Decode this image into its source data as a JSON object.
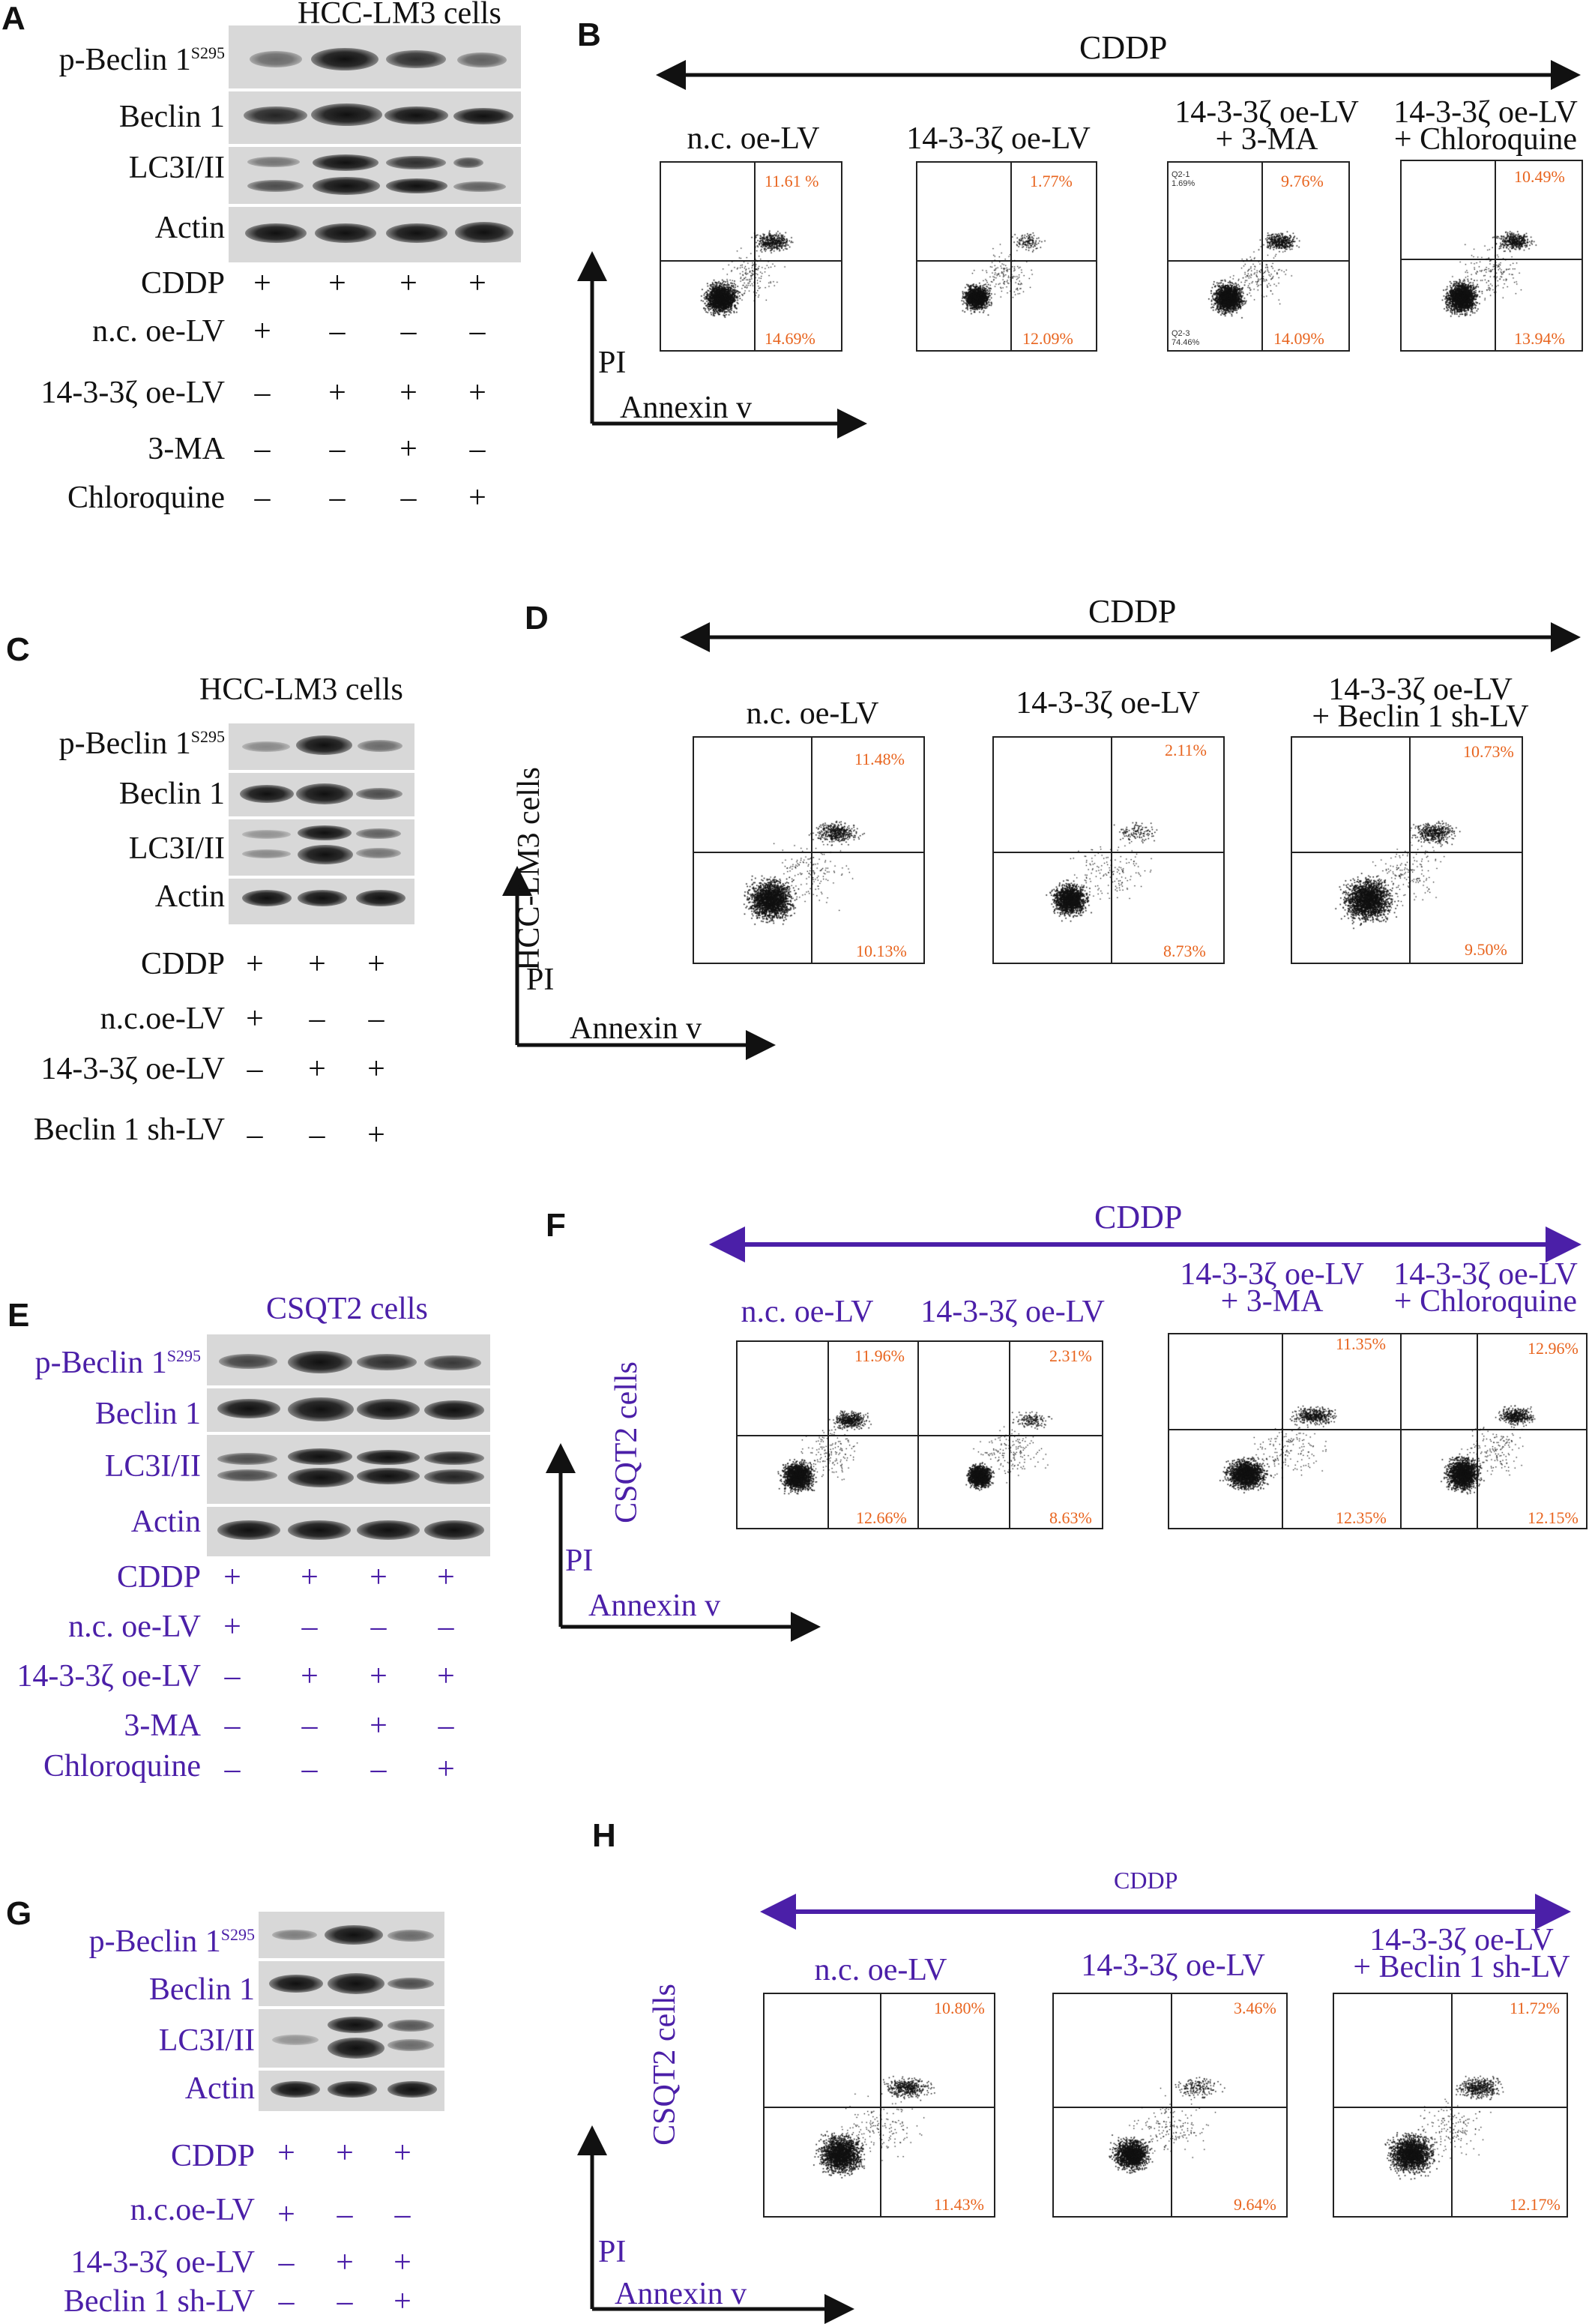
{
  "colors": {
    "purple": "#4b1fa8",
    "orange": "#e8641e",
    "black": "#111111"
  },
  "panels": {
    "A": {
      "letter": "A",
      "title": "HCC-LM3 cells",
      "blot_labels": [
        "p-Beclin 1",
        "Beclin 1",
        "LC3I/II",
        "Actin"
      ],
      "sup": "S295",
      "conditions": [
        {
          "label": "CDDP",
          "signs": [
            "+",
            "+",
            "+",
            "+"
          ]
        },
        {
          "label": "n.c. oe-LV",
          "signs": [
            "+",
            "–",
            "–",
            "–"
          ]
        },
        {
          "label": "14-3-3ζ oe-LV",
          "signs": [
            "–",
            "+",
            "+",
            "+"
          ]
        },
        {
          "label": "3-MA",
          "signs": [
            "–",
            "–",
            "+",
            "–"
          ]
        },
        {
          "label": "Chloroquine",
          "signs": [
            "–",
            "–",
            "–",
            "+"
          ]
        }
      ]
    },
    "B": {
      "letter": "B",
      "treatment": "CDDP",
      "y_axis": "PI",
      "x_axis": "Annexin v",
      "plots": [
        {
          "title": [
            "n.c. oe-LV"
          ],
          "ur": "11.61 %",
          "lr": "14.69%"
        },
        {
          "title": [
            "14-3-3ζ oe-LV"
          ],
          "ur": "1.77%",
          "lr": "12.09%"
        },
        {
          "title": [
            "14-3-3ζ oe-LV",
            "+ 3-MA"
          ],
          "ur": "9.76%",
          "lr": "14.09%",
          "ul_gate": "Q2-1",
          "ul_pct": "1.69%",
          "ll_gate": "Q2-3",
          "ll_pct": "74.46%"
        },
        {
          "title": [
            "14-3-3ζ oe-LV",
            "+ Chloroquine"
          ],
          "ur": "10.49%",
          "lr": "13.94%"
        }
      ]
    },
    "C": {
      "letter": "C",
      "title": "HCC-LM3 cells",
      "blot_labels": [
        "p-Beclin 1",
        "Beclin 1",
        "LC3I/II",
        "Actin"
      ],
      "sup": "S295",
      "conditions": [
        {
          "label": "CDDP",
          "signs": [
            "+",
            "+",
            "+"
          ]
        },
        {
          "label": "n.c.oe-LV",
          "signs": [
            "+",
            "–",
            "–"
          ]
        },
        {
          "label": "14-3-3ζ oe-LV",
          "signs": [
            "–",
            "+",
            "+"
          ]
        },
        {
          "label": "Beclin 1 sh-LV",
          "signs": [
            "–",
            "–",
            "+"
          ]
        }
      ]
    },
    "D": {
      "letter": "D",
      "treatment": "CDDP",
      "y_axis": "PI",
      "x_axis": "Annexin v",
      "cell_label": "HCC-LM3 cells",
      "plots": [
        {
          "title": [
            "n.c. oe-LV"
          ],
          "ur": "11.48%",
          "lr": "10.13%"
        },
        {
          "title": [
            "14-3-3ζ oe-LV"
          ],
          "ur": "2.11%",
          "lr": "8.73%"
        },
        {
          "title": [
            "14-3-3ζ oe-LV",
            "+ Beclin 1 sh-LV"
          ],
          "ur": "10.73%",
          "lr": "9.50%"
        }
      ]
    },
    "E": {
      "letter": "E",
      "title": "CSQT2 cells",
      "blot_labels": [
        "p-Beclin 1",
        "Beclin 1",
        "LC3I/II",
        "Actin"
      ],
      "sup": "S295",
      "conditions": [
        {
          "label": "CDDP",
          "signs": [
            "+",
            "+",
            "+",
            "+"
          ]
        },
        {
          "label": "n.c. oe-LV",
          "signs": [
            "+",
            "–",
            "–",
            "–"
          ]
        },
        {
          "label": "14-3-3ζ oe-LV",
          "signs": [
            "–",
            "+",
            "+",
            "+"
          ]
        },
        {
          "label": "3-MA",
          "signs": [
            "–",
            "–",
            "+",
            "–"
          ]
        },
        {
          "label": "Chloroquine",
          "signs": [
            "–",
            "–",
            "–",
            "+"
          ]
        }
      ]
    },
    "F": {
      "letter": "F",
      "treatment": "CDDP",
      "y_axis": "PI",
      "x_axis": "Annexin v",
      "cell_label": "CSQT2 cells",
      "plots": [
        {
          "title": [
            "n.c. oe-LV"
          ],
          "ur": "11.96%",
          "lr": "12.66%"
        },
        {
          "title": [
            "14-3-3ζ oe-LV"
          ],
          "ur": "2.31%",
          "lr": "8.63%"
        },
        {
          "title": [
            "14-3-3ζ oe-LV",
            "+ 3-MA"
          ],
          "ur": "11.35%",
          "lr": "12.35%"
        },
        {
          "title": [
            "14-3-3ζ oe-LV",
            "+ Chloroquine"
          ],
          "ur": "12.96%",
          "lr": "12.15%"
        }
      ]
    },
    "G": {
      "letter": "G",
      "blot_labels": [
        "p-Beclin 1",
        "Beclin 1",
        "LC3I/II",
        "Actin"
      ],
      "sup": "S295",
      "conditions": [
        {
          "label": "CDDP",
          "signs": [
            "+",
            "+",
            "+"
          ]
        },
        {
          "label": "n.c.oe-LV",
          "signs": [
            "+",
            "–",
            "–"
          ]
        },
        {
          "label": "14-3-3ζ oe-LV",
          "signs": [
            "–",
            "+",
            "+"
          ]
        },
        {
          "label": "Beclin 1 sh-LV",
          "signs": [
            "–",
            "–",
            "+"
          ]
        }
      ]
    },
    "H": {
      "letter": "H",
      "treatment": "CDDP",
      "y_axis": "PI",
      "x_axis": "Annexin v",
      "cell_label": "CSQT2 cells",
      "plots": [
        {
          "title": [
            "n.c. oe-LV"
          ],
          "ur": "10.80%",
          "lr": "11.43%"
        },
        {
          "title": [
            "14-3-3ζ oe-LV"
          ],
          "ur": "3.46%",
          "lr": "9.64%"
        },
        {
          "title": [
            "14-3-3ζ oe-LV",
            "+ Beclin 1 sh-LV"
          ],
          "ur": "11.72%",
          "lr": "12.17%"
        }
      ]
    }
  }
}
